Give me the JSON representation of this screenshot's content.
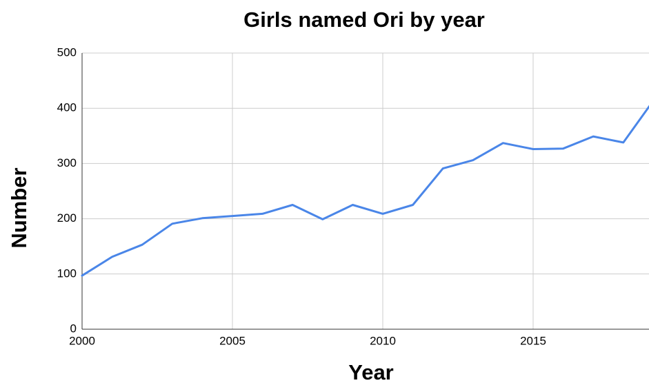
{
  "chart_data": {
    "type": "line",
    "title": "Girls named Ori by year",
    "xlabel": "Year",
    "ylabel": "Number",
    "xlim": [
      2000,
      2019
    ],
    "ylim": [
      0,
      500
    ],
    "x_ticks": [
      2000,
      2005,
      2010,
      2015
    ],
    "y_ticks": [
      0,
      100,
      200,
      300,
      400,
      500
    ],
    "grid": true,
    "legend": "none",
    "series_color": "#4a86e8",
    "series": [
      {
        "x": [
          2000,
          2001,
          2002,
          2003,
          2004,
          2005,
          2006,
          2007,
          2008,
          2009,
          2010,
          2011,
          2012,
          2013,
          2014,
          2015,
          2016,
          2017,
          2018,
          2019
        ],
        "values": [
          97,
          131,
          153,
          191,
          201,
          205,
          209,
          225,
          199,
          225,
          209,
          225,
          291,
          306,
          337,
          326,
          327,
          349,
          338,
          414
        ]
      }
    ]
  }
}
